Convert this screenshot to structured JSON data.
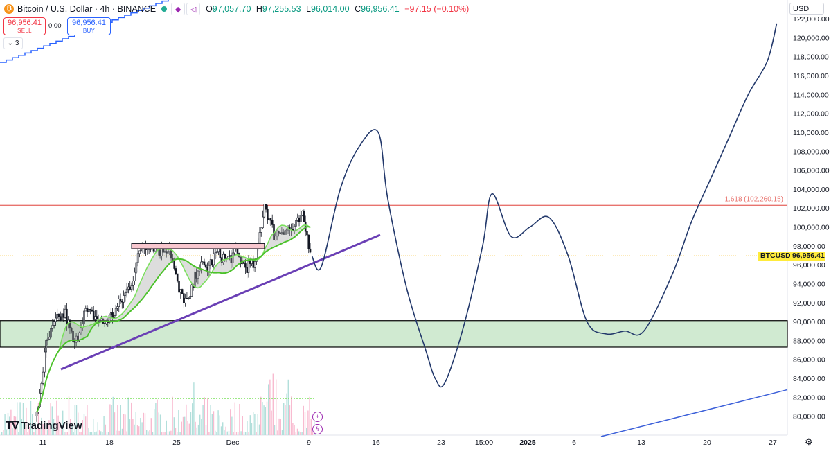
{
  "header": {
    "coin_icon": "bitcoin-icon",
    "title": "Bitcoin / U.S. Dollar · 4h · BINANCE",
    "open_label": "O",
    "open": "97,057.70",
    "high_label": "H",
    "high": "97,255.53",
    "low_label": "L",
    "low": "96,014.00",
    "close_label": "C",
    "close": "96,956.41",
    "change": "−97.15 (−0.10%)"
  },
  "trade": {
    "sell_price": "96,956.41",
    "sell_label": "SELL",
    "spread": "0.00",
    "buy_price": "96,956.41",
    "buy_label": "BUY"
  },
  "indicators_count": "3",
  "currency": "USD",
  "logo_text": "TradingView",
  "price_label": {
    "symbol": "BTCUSD",
    "value": "96,956.41"
  },
  "fib_label": "1.618 (102,260.15)",
  "colors": {
    "up": "#089981",
    "down": "#f23645",
    "projection": "#22386b",
    "trendline": "#6a3fb5",
    "fib": "#e8736e",
    "zone": "#c8e6c9",
    "ma": "#7ae05c",
    "price_tag": "#ffeb3b"
  },
  "chart_data": {
    "type": "line",
    "title": "Bitcoin / U.S. Dollar · 4h · BINANCE",
    "xlabel": "",
    "ylabel": "",
    "ylim": [
      78000,
      123000
    ],
    "x_ticks": [
      "11",
      "18",
      "25",
      "Dec",
      "9",
      "16",
      "23",
      "15:00",
      "2025",
      "6",
      "13",
      "20",
      "27"
    ],
    "y_ticks": [
      80000,
      82000,
      84000,
      86000,
      88000,
      90000,
      92000,
      94000,
      96000,
      98000,
      100000,
      102000,
      104000,
      106000,
      108000,
      110000,
      112000,
      114000,
      116000,
      118000,
      120000,
      122000
    ],
    "y_tick_labels": [
      "80,000.00",
      "82,000.00",
      "84,000.00",
      "86,000.00",
      "88,000.00",
      "90,000.00",
      "92,000.00",
      "94,000.00",
      "96,000.00",
      "98,000.00",
      "100,000.00",
      "102,000.00",
      "104,000.00",
      "106,000.00",
      "108,000.00",
      "110,000.00",
      "112,000.00",
      "114,000.00",
      "116,000.00",
      "118,000.00",
      "120,000.00",
      "122,000.00"
    ],
    "price_series": {
      "name": "BTCUSD",
      "x": [
        "Nov 10",
        "Nov 11",
        "Nov 12",
        "Nov 13",
        "Nov 14",
        "Nov 15",
        "Nov 16",
        "Nov 17",
        "Nov 18",
        "Nov 19",
        "Nov 20",
        "Nov 21",
        "Nov 22",
        "Nov 23",
        "Nov 24",
        "Nov 25",
        "Nov 26",
        "Nov 27",
        "Nov 28",
        "Nov 29",
        "Nov 30",
        "Dec 1",
        "Dec 2",
        "Dec 3",
        "Dec 4",
        "Dec 5",
        "Dec 6",
        "Dec 7",
        "Dec 8",
        "Dec 9"
      ],
      "close": [
        80000,
        87500,
        90000,
        90800,
        87400,
        91000,
        90600,
        89800,
        90700,
        92300,
        94200,
        97900,
        98300,
        97500,
        97900,
        93100,
        91900,
        95900,
        95600,
        97300,
        96500,
        97200,
        95800,
        96000,
        102500,
        99200,
        99800,
        99700,
        101000,
        96956
      ]
    },
    "projection": {
      "name": "",
      "x": [
        "Dec 10",
        "Dec 12",
        "Dec 14",
        "Dec 16",
        "Dec 17",
        "Dec 19",
        "Dec 21",
        "Dec 22",
        "Dec 23",
        "Dec 25",
        "Dec 27",
        "Dec 28",
        "Dec 30",
        "Jan 1",
        "Jan 3",
        "Jan 5",
        "Jan 7",
        "Jan 9",
        "Jan 11",
        "Jan 13",
        "Jan 16",
        "Jan 18",
        "Jan 20",
        "Jan 22",
        "Jan 24",
        "Jan 26",
        "Jan 27"
      ],
      "values": [
        95800,
        104000,
        108500,
        110000,
        103000,
        93500,
        87000,
        84000,
        83500,
        89500,
        98000,
        103500,
        99000,
        100000,
        101000,
        97000,
        90000,
        88700,
        89000,
        89000,
        95000,
        100500,
        105000,
        109500,
        114000,
        117500,
        121500
      ]
    },
    "annotations": {
      "fib_level": {
        "label": "1.618 (102,260.15)",
        "value": 102260.15
      },
      "resistance_band": [
        97700,
        98250
      ],
      "support_zone": [
        87300,
        90100
      ],
      "last_price": 96956.41
    },
    "grid": false,
    "legend": "none"
  }
}
